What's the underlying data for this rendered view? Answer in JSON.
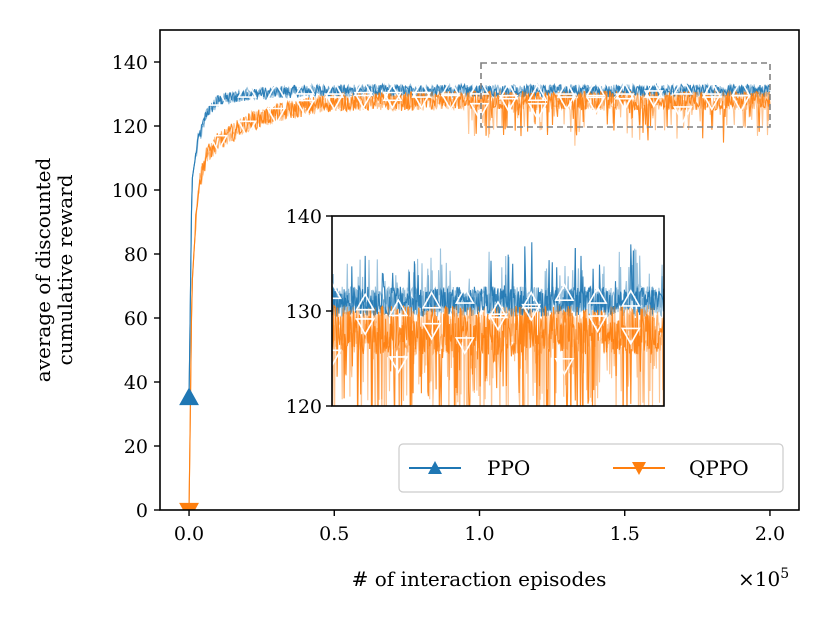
{
  "chart_data": {
    "type": "line",
    "title": "",
    "xlabel": "# of interaction episodes",
    "x_multiplier_label": "×10",
    "x_multiplier_exp": "5",
    "ylabel_lines": [
      "average of discounted",
      "cumulative reward"
    ],
    "xlim": [
      -0.1,
      2.1
    ],
    "ylim": [
      0,
      150
    ],
    "x_ticks": [
      0.0,
      0.5,
      1.0,
      1.5,
      2.0
    ],
    "x_tick_labels": [
      "0.0",
      "0.5",
      "1.0",
      "1.5",
      "2.0"
    ],
    "y_ticks": [
      0,
      20,
      40,
      60,
      80,
      100,
      120,
      140
    ],
    "y_tick_labels": [
      "0",
      "20",
      "40",
      "60",
      "80",
      "100",
      "120",
      "140"
    ],
    "series": [
      {
        "name": "PPO",
        "color": "#1f77b4",
        "marker": "triangle-up",
        "trend": [
          [
            0.0,
            35
          ],
          [
            0.01,
            103
          ],
          [
            0.03,
            115
          ],
          [
            0.06,
            124
          ],
          [
            0.1,
            128
          ],
          [
            0.2,
            130
          ],
          [
            0.4,
            131
          ],
          [
            1.0,
            131
          ],
          [
            2.0,
            131
          ]
        ],
        "marker_points": [
          [
            0.0,
            35
          ],
          [
            0.1,
            128.5
          ],
          [
            0.2,
            131
          ],
          [
            0.3,
            130.5
          ],
          [
            0.4,
            132
          ],
          [
            0.5,
            131
          ],
          [
            0.6,
            131.5
          ],
          [
            0.7,
            130
          ],
          [
            0.8,
            131
          ],
          [
            0.9,
            131.5
          ],
          [
            1.0,
            132
          ],
          [
            1.1,
            130.5
          ],
          [
            1.2,
            130
          ],
          [
            1.3,
            131
          ],
          [
            1.4,
            131.5
          ],
          [
            1.5,
            130.5
          ],
          [
            1.6,
            131
          ],
          [
            1.7,
            132
          ],
          [
            1.8,
            131
          ],
          [
            1.9,
            131.5
          ]
        ],
        "noise_main": 2.0,
        "noise_inset": 1.6
      },
      {
        "name": "QPPO",
        "color": "#ff7f0e",
        "marker": "triangle-down",
        "trend": [
          [
            0.0,
            0
          ],
          [
            0.01,
            70
          ],
          [
            0.03,
            100
          ],
          [
            0.06,
            111
          ],
          [
            0.1,
            115
          ],
          [
            0.2,
            121
          ],
          [
            0.3,
            124
          ],
          [
            0.4,
            126
          ],
          [
            0.5,
            127.5
          ],
          [
            1.0,
            128
          ],
          [
            2.0,
            128
          ]
        ],
        "marker_points": [
          [
            0.0,
            0
          ],
          [
            0.1,
            115
          ],
          [
            0.2,
            119.5
          ],
          [
            0.3,
            123.5
          ],
          [
            0.4,
            126
          ],
          [
            0.5,
            128
          ],
          [
            0.6,
            128.5
          ],
          [
            0.7,
            128.5
          ],
          [
            0.8,
            128.5
          ],
          [
            0.9,
            128
          ],
          [
            1.0,
            125
          ],
          [
            1.1,
            127.5
          ],
          [
            1.2,
            125
          ],
          [
            1.3,
            128
          ],
          [
            1.4,
            127
          ],
          [
            1.5,
            128
          ],
          [
            1.6,
            129
          ],
          [
            1.7,
            124
          ],
          [
            1.8,
            128
          ],
          [
            1.9,
            127.5
          ]
        ],
        "noise_main": 3.0,
        "noise_inset": 2.6
      }
    ],
    "zoom_box": {
      "x": [
        1.0,
        2.0
      ],
      "y": [
        120,
        140
      ]
    },
    "inset": {
      "ylim": [
        120,
        140
      ],
      "y_ticks": [
        120,
        130,
        140
      ],
      "y_tick_labels": [
        "120",
        "130",
        "140"
      ],
      "xlim": [
        1.0,
        2.0
      ],
      "ppo_markers": [
        132,
        130.8,
        130.2,
        131,
        131.5,
        130,
        131,
        131.8,
        131.5,
        131.2
      ],
      "qppo_markers": [
        125.2,
        128.5,
        124.5,
        128,
        126.5,
        129,
        130,
        124.3,
        128.8,
        127.5
      ]
    },
    "legend": {
      "position": "lower-right",
      "entries": [
        "PPO",
        "QPPO"
      ]
    }
  }
}
